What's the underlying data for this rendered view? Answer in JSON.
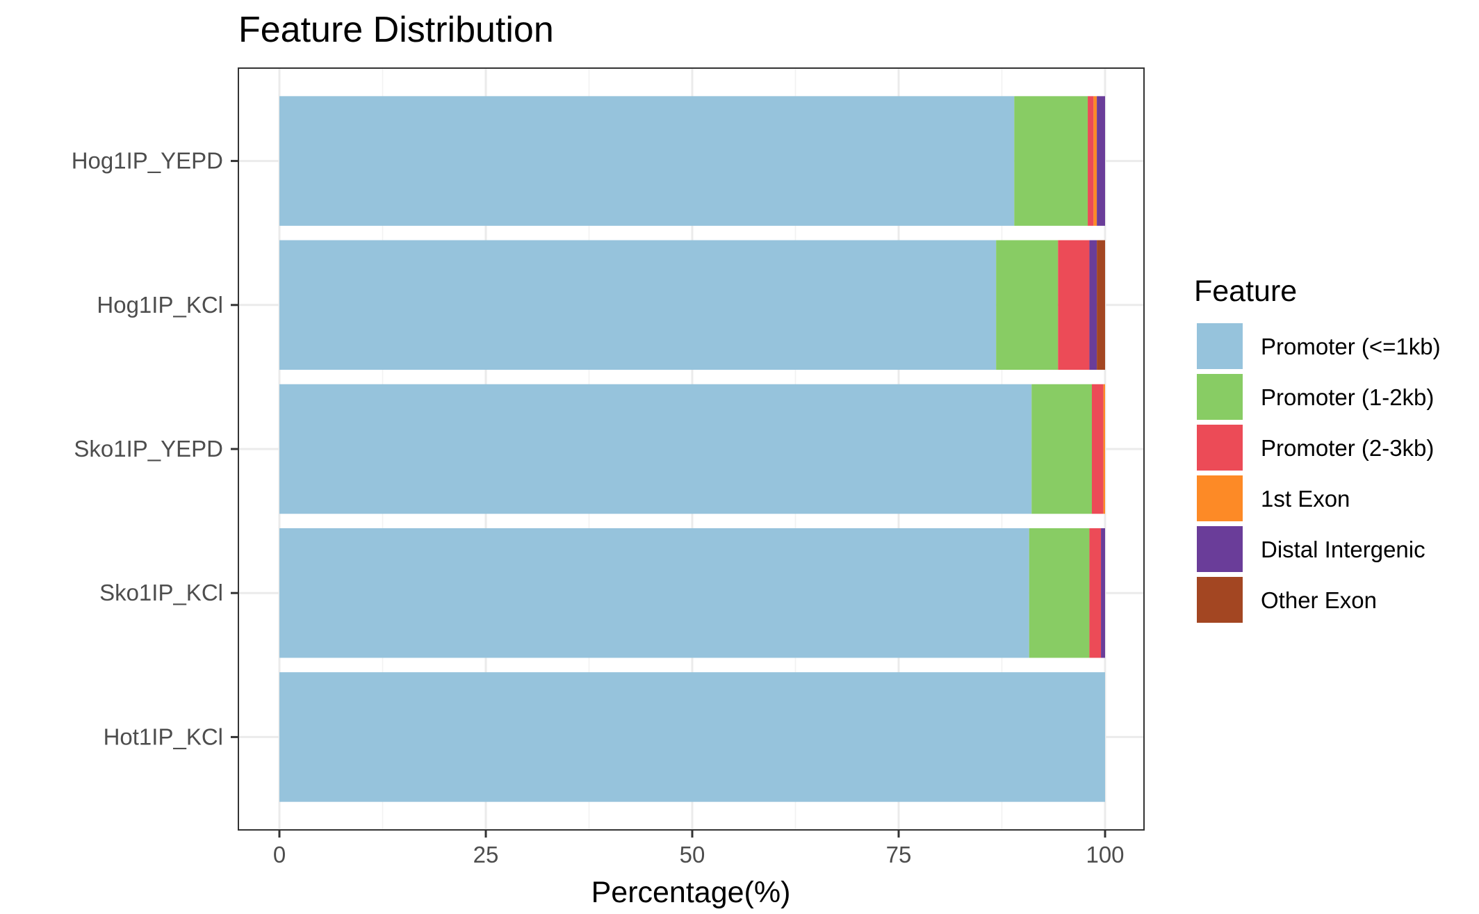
{
  "chart_data": {
    "type": "bar",
    "orientation": "horizontal",
    "stacked": true,
    "title": "Feature Distribution",
    "xlabel": "Percentage(%)",
    "ylabel": "",
    "xlim": [
      0,
      100
    ],
    "xticks": [
      0,
      25,
      50,
      75,
      100
    ],
    "grid": true,
    "legend": {
      "title": "Feature",
      "placement": "right"
    },
    "categories": [
      "Hog1IP_YEPD",
      "Hog1IP_KCl",
      "Sko1IP_YEPD",
      "Sko1IP_KCl",
      "Hot1IP_KCl"
    ],
    "series": [
      {
        "name": "Promoter (<=1kb)",
        "color": "#96C3DC",
        "values": [
          89.0,
          86.8,
          91.1,
          90.8,
          100.0
        ]
      },
      {
        "name": "Promoter (1-2kb)",
        "color": "#88CC64",
        "values": [
          8.9,
          7.5,
          7.3,
          7.3,
          0.0
        ]
      },
      {
        "name": "Promoter (2-3kb)",
        "color": "#EC4B57",
        "values": [
          0.7,
          3.8,
          1.4,
          1.4,
          0.0
        ]
      },
      {
        "name": "1st Exon",
        "color": "#FD8A26",
        "values": [
          0.4,
          0.0,
          0.2,
          0.0,
          0.0
        ]
      },
      {
        "name": "Distal Intergenic",
        "color": "#6A3D99",
        "values": [
          1.0,
          0.9,
          0.0,
          0.5,
          0.0
        ]
      },
      {
        "name": "Other Exon",
        "color": "#A34622",
        "values": [
          0.0,
          1.0,
          0.0,
          0.0,
          0.0
        ]
      }
    ]
  }
}
